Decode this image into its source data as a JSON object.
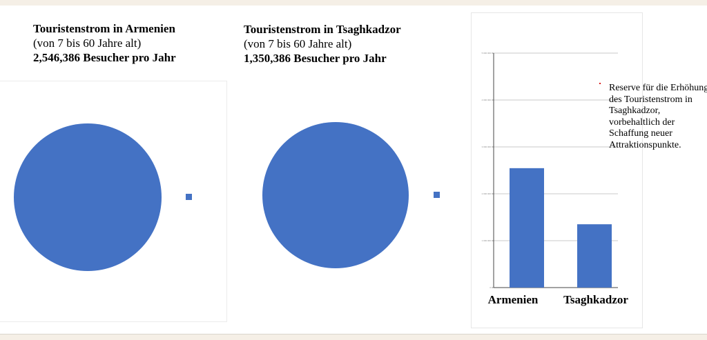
{
  "headings": {
    "armenia": {
      "title": "Touristenstrom in Armenien",
      "subtitle": "(von 7 bis 60 Jahre alt)",
      "visitors": "2,546,386 Besucher pro Jahr"
    },
    "tsaghkadzor": {
      "title": "Touristenstrom in Tsaghkadzor",
      "subtitle": "(von 7 bis 60 Jahre alt)",
      "visitors": "1,350,386 Besucher pro Jahr"
    }
  },
  "note": "Reserve für die Erhöhung des Touristenstrom in Tsaghkadzor, vorbehaltlich der Schaffung neuer Attraktionspunkte.",
  "colors": {
    "series": "#4472c4",
    "gridline": "#c8c8c8",
    "note_marker": "#d81b1b"
  },
  "chart_data": [
    {
      "type": "pie",
      "categories": [
        "Touristenstrom in Armenien"
      ],
      "values": [
        2546386
      ],
      "legend": "right"
    },
    {
      "type": "pie",
      "categories": [
        "Touristenstrom in Tsaghkadzor"
      ],
      "values": [
        1350386
      ],
      "legend": "right"
    },
    {
      "type": "bar",
      "categories": [
        "Armenien",
        "Tsaghkadzor"
      ],
      "values": [
        2546386,
        1350386
      ],
      "ylim": [
        0,
        5000000
      ],
      "yticks": [
        0,
        1000000,
        2000000,
        3000000,
        4000000,
        5000000
      ],
      "ytick_labels": [
        "0",
        "1 000 000",
        "2 000 000",
        "3 000 000",
        "4 000 000",
        "5 000 000"
      ],
      "grid": true
    }
  ]
}
